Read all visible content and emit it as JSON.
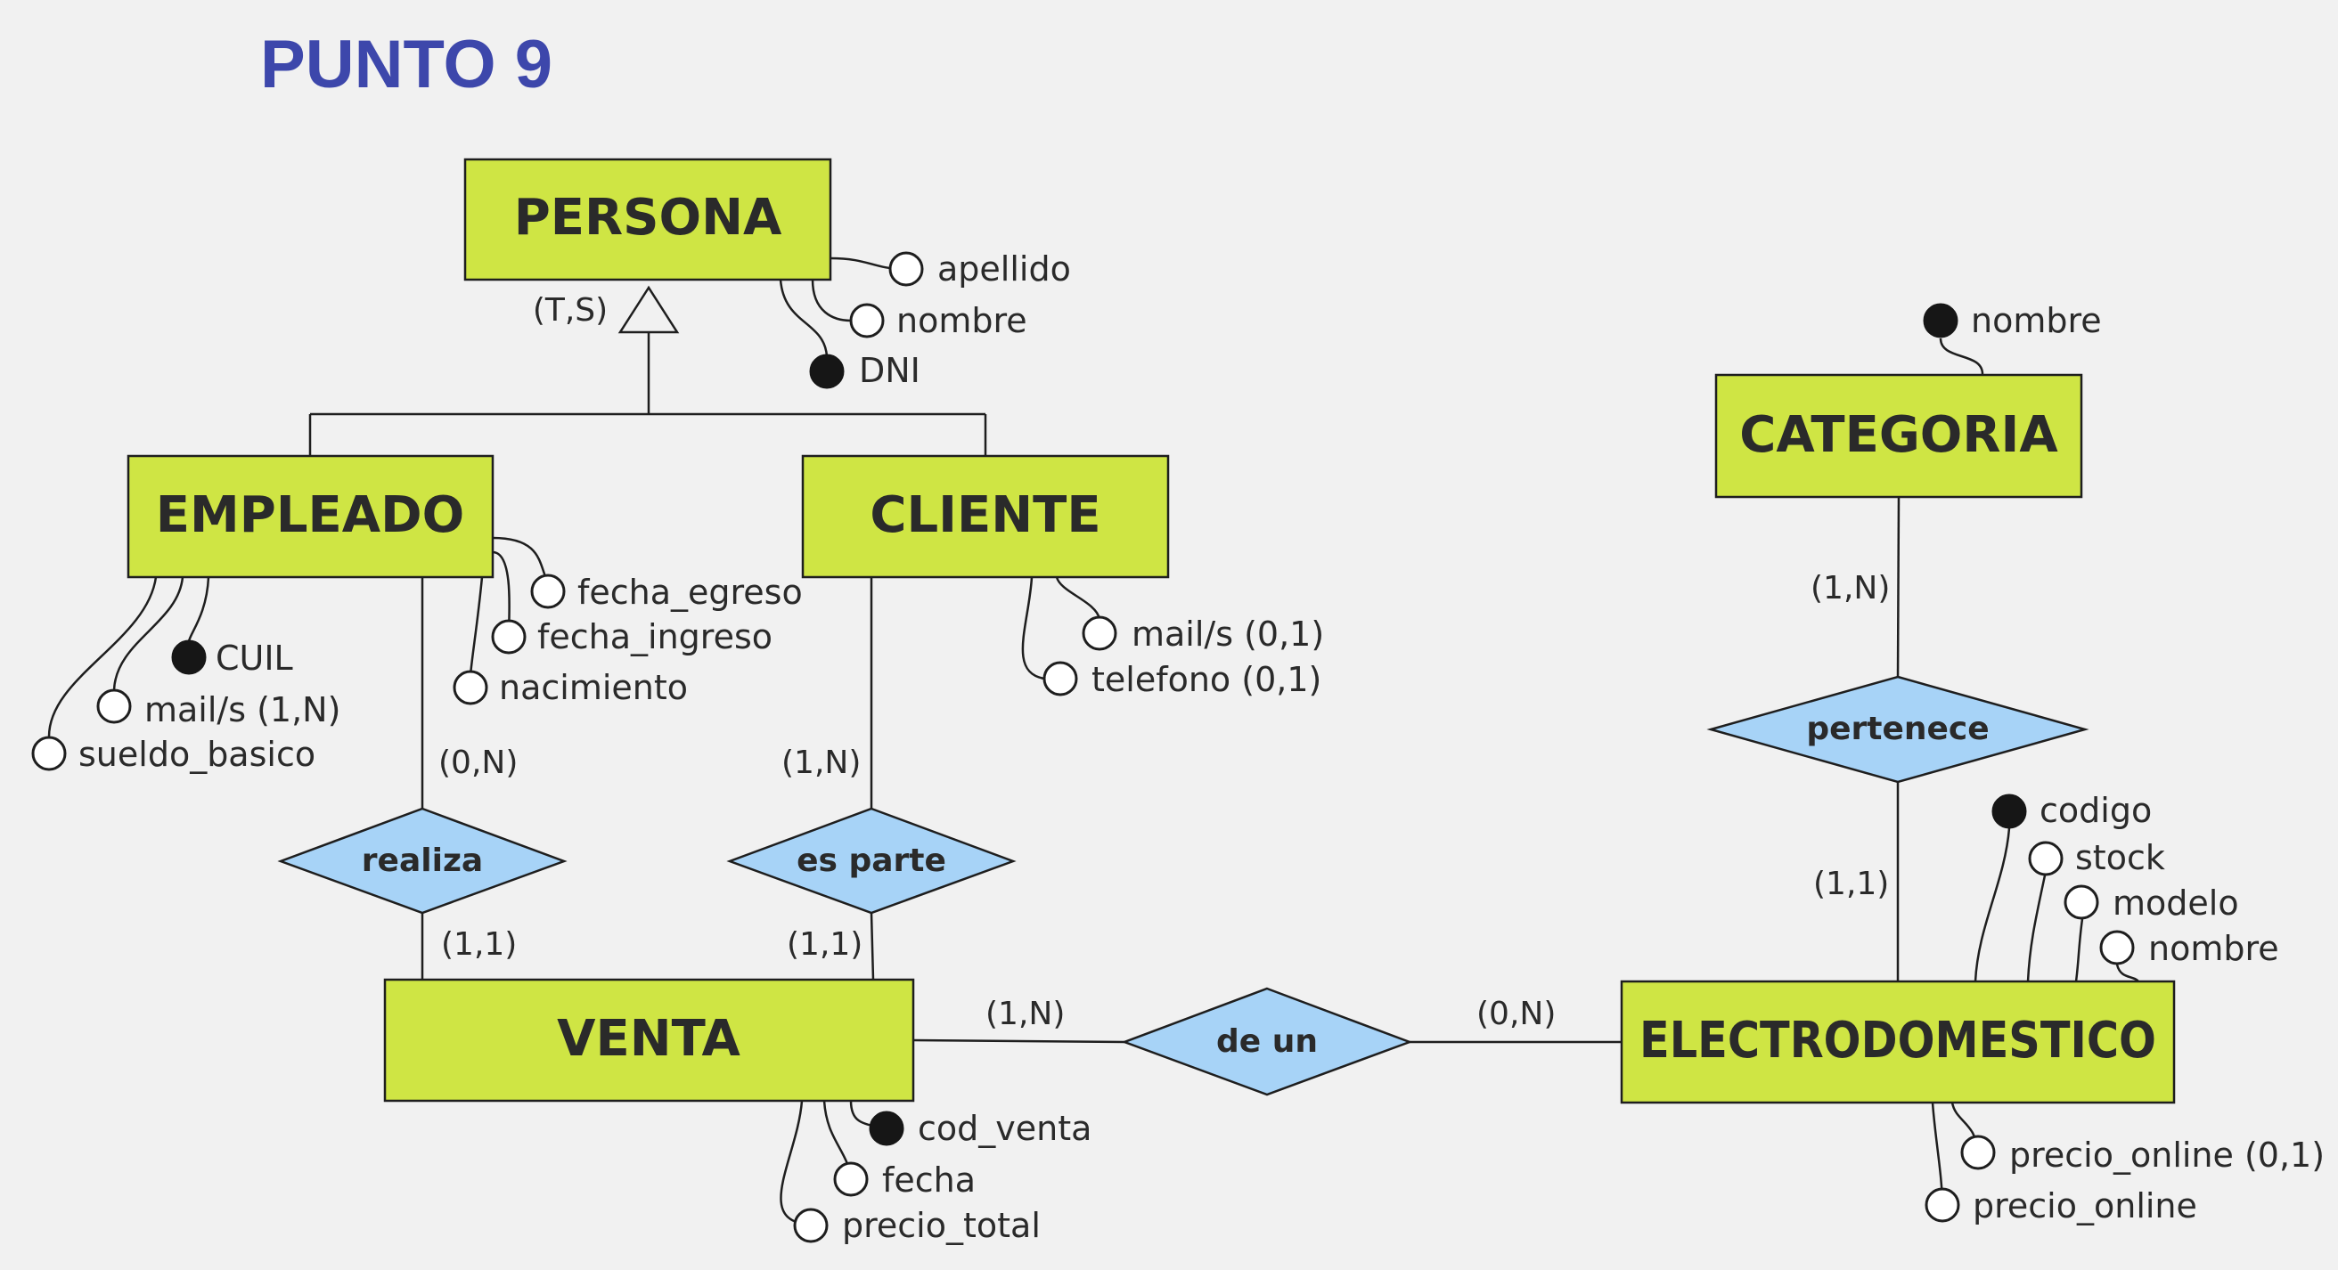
{
  "title": "PUNTO 9",
  "entities": {
    "persona": "PERSONA",
    "empleado": "EMPLEADO",
    "cliente": "CLIENTE",
    "venta": "VENTA",
    "categoria": "CATEGORIA",
    "electrodomestico": "ELECTRODOMESTICO"
  },
  "relationships": {
    "realiza": "realiza",
    "es_parte": "es parte",
    "de_un": "de un",
    "pertenece": "pertenece"
  },
  "hierarchy": {
    "label": "(T,S)"
  },
  "cardinalities": {
    "empleado_realiza": "(0,N)",
    "realiza_venta": "(1,1)",
    "cliente_es_parte": "(1,N)",
    "es_parte_venta": "(1,1)",
    "venta_de_un": "(1,N)",
    "de_un_electrodomestico": "(0,N)",
    "categoria_pertenece": "(1,N)",
    "pertenece_electrodomestico": "(1,1)"
  },
  "attributes": {
    "persona": [
      {
        "name": "apellido",
        "key": false
      },
      {
        "name": "nombre",
        "key": false
      },
      {
        "name": "DNI",
        "key": true
      }
    ],
    "empleado": [
      {
        "name": "fecha_egreso",
        "key": false
      },
      {
        "name": "fecha_ingreso",
        "key": false
      },
      {
        "name": "nacimiento",
        "key": false
      },
      {
        "name": "CUIL",
        "key": true
      },
      {
        "name": "mail/s (1,N)",
        "key": false
      },
      {
        "name": "sueldo_basico",
        "key": false
      }
    ],
    "cliente": [
      {
        "name": "mail/s (0,1)",
        "key": false
      },
      {
        "name": "telefono (0,1)",
        "key": false
      }
    ],
    "categoria": [
      {
        "name": "nombre",
        "key": true
      }
    ],
    "electrodomestico": [
      {
        "name": "codigo",
        "key": true
      },
      {
        "name": "stock",
        "key": false
      },
      {
        "name": "modelo",
        "key": false
      },
      {
        "name": "nombre",
        "key": false
      },
      {
        "name": "precio_online (0,1)",
        "key": false
      },
      {
        "name": "precio_online",
        "key": false
      }
    ],
    "venta": [
      {
        "name": "cod_venta",
        "key": true
      },
      {
        "name": "fecha",
        "key": false
      },
      {
        "name": "precio_total",
        "key": false
      }
    ]
  },
  "colors": {
    "entity_fill": "#cfe544",
    "relationship_fill": "#a7d3f7",
    "title": "#3d47ab",
    "background": "#f1f1f1"
  }
}
